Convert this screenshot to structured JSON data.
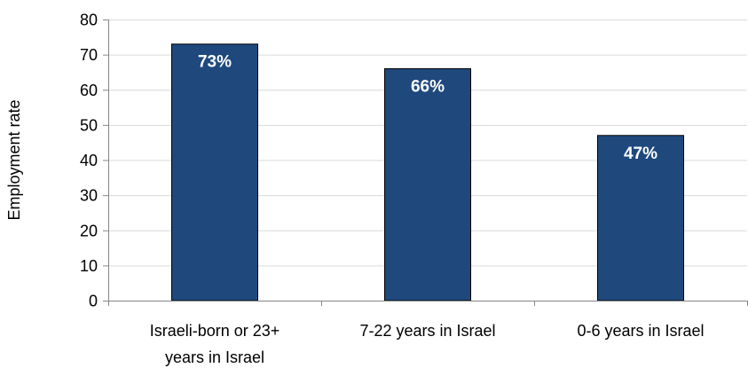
{
  "chart_data": {
    "type": "bar",
    "categories": [
      [
        "Israeli-born or 23+",
        "years in Israel"
      ],
      [
        "7-22 years in Israel"
      ],
      [
        "0-6 years in Israel"
      ]
    ],
    "values": [
      73,
      66,
      47
    ],
    "data_labels": [
      "73%",
      "66%",
      "47%"
    ],
    "title": "",
    "xlabel": "",
    "ylabel": "Employment rate",
    "ylim": [
      0,
      80
    ],
    "yticks": [
      0,
      10,
      20,
      30,
      40,
      50,
      60,
      70,
      80
    ],
    "ytick_labels": [
      "0",
      "10",
      "20",
      "30",
      "40",
      "50",
      "60",
      "70",
      "80"
    ],
    "grid": true,
    "legend": "none",
    "colors": {
      "bar": "#1f497d",
      "bar_border": "#000000",
      "grid": "#d9d9d9",
      "axis": "#868686"
    }
  }
}
